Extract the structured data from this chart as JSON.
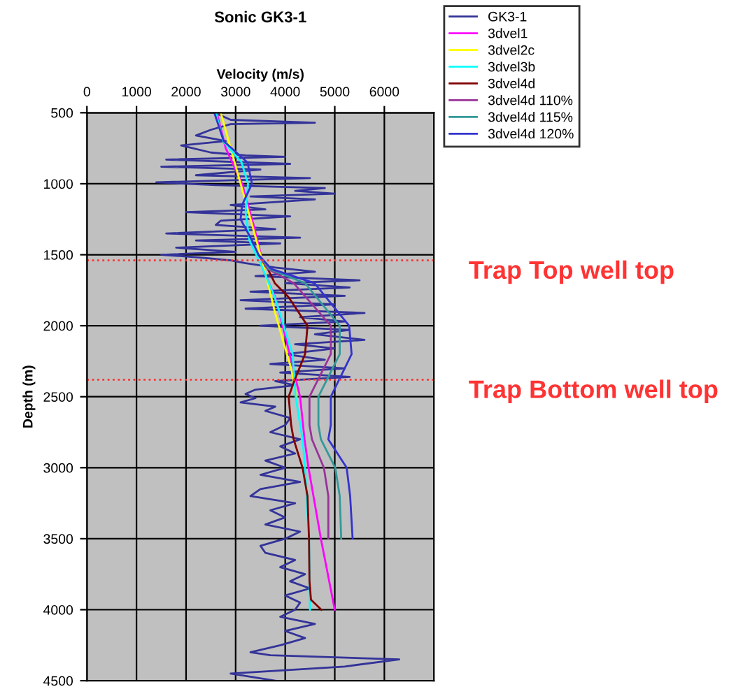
{
  "chart_data": {
    "type": "line",
    "title": "Sonic GK3-1",
    "xlabel": "Velocity (m/s)",
    "ylabel": "Depth (m)",
    "xlim": [
      0,
      7000
    ],
    "xticks": [
      0,
      1000,
      2000,
      3000,
      4000,
      5000,
      6000
    ],
    "ylim": [
      4500,
      500
    ],
    "yticks": [
      500,
      1000,
      1500,
      2000,
      2500,
      3000,
      3500,
      4000,
      4500
    ],
    "grid": true,
    "legend": "top right",
    "series": [
      {
        "name": "GK3-1",
        "color": "#333399",
        "x": [
          2580,
          2900,
          4600,
          2900,
          2500,
          2200,
          2800,
          1900,
          2500,
          3200,
          4000,
          1600,
          4100,
          1500,
          3500,
          2200,
          4500,
          1400,
          2600,
          4800,
          4200,
          5000,
          3300,
          4600,
          2900,
          3600,
          2000,
          4100,
          2700,
          2600,
          3800,
          1600,
          4300,
          2200,
          3900,
          1800,
          3000,
          1500,
          2300,
          2900,
          3200,
          3800,
          4600,
          3400,
          5500,
          4000,
          5300,
          3300,
          5200,
          3100,
          5000,
          3200,
          5600,
          4300,
          5200,
          3500,
          5300,
          4600,
          5600,
          4200,
          5000,
          4000,
          4800,
          3700,
          5200,
          3900,
          5300,
          3800,
          4200,
          3400,
          3200,
          3400,
          3100,
          3800,
          3600,
          4100,
          4000,
          3700,
          4300,
          3900,
          4200,
          3600,
          4000,
          3500,
          4300,
          3500,
          3300,
          4200,
          3700,
          4000,
          3600,
          4300,
          4000,
          3500,
          3600,
          4200,
          3900,
          4400,
          4100,
          4500,
          4000,
          4300,
          4200,
          3900,
          4600,
          4000,
          4400,
          3900,
          3300,
          3700,
          6300,
          5200,
          2900,
          3800
        ],
        "values": [
          500,
          550,
          570,
          580,
          620,
          660,
          700,
          730,
          780,
          800,
          810,
          830,
          860,
          880,
          900,
          940,
          960,
          990,
          1010,
          1030,
          1050,
          1070,
          1090,
          1110,
          1150,
          1180,
          1200,
          1230,
          1260,
          1290,
          1320,
          1350,
          1380,
          1400,
          1420,
          1450,
          1480,
          1500,
          1520,
          1540,
          1560,
          1590,
          1620,
          1650,
          1680,
          1700,
          1730,
          1760,
          1790,
          1820,
          1850,
          1880,
          1910,
          1940,
          1970,
          2000,
          2030,
          2060,
          2100,
          2130,
          2160,
          2200,
          2240,
          2270,
          2300,
          2330,
          2360,
          2390,
          2420,
          2450,
          2480,
          2510,
          2540,
          2570,
          2600,
          2650,
          2700,
          2750,
          2800,
          2850,
          2900,
          2950,
          3000,
          3050,
          3100,
          3150,
          3200,
          3250,
          3300,
          3350,
          3400,
          3450,
          3500,
          3550,
          3600,
          3650,
          3700,
          3750,
          3800,
          3850,
          3900,
          3950,
          4000,
          4050,
          4100,
          4150,
          4200,
          4250,
          4300,
          4320,
          4350,
          4400,
          4450,
          4500
        ]
      },
      {
        "name": "3dvel1",
        "color": "#ff00ff",
        "x": [
          2620,
          2800,
          3130,
          3370,
          3510,
          3550,
          3800,
          3950,
          4300,
          4390,
          4470,
          4720,
          5000
        ],
        "values": [
          500,
          750,
          1000,
          1300,
          1500,
          1600,
          1800,
          2000,
          2500,
          2800,
          3000,
          3500,
          4000
        ]
      },
      {
        "name": "3dvel2c",
        "color": "#ffff00",
        "x": [
          2700,
          2900,
          3100,
          3300,
          3500,
          3650,
          3790,
          3950,
          4120,
          4230
        ],
        "values": [
          500,
          750,
          1000,
          1250,
          1500,
          1700,
          1900,
          2100,
          2300,
          2500
        ]
      },
      {
        "name": "3dvel3b",
        "color": "#00ffff",
        "x": [
          2600,
          2750,
          3120,
          3250,
          3200,
          3280,
          3550,
          3790,
          3970,
          4150,
          4210,
          4350,
          4400,
          4480,
          4500
        ],
        "values": [
          500,
          700,
          850,
          1000,
          1200,
          1400,
          1600,
          1800,
          2000,
          2200,
          2500,
          2800,
          3000,
          3500,
          4000
        ]
      },
      {
        "name": "3dvel4d",
        "color": "#800000",
        "x": [
          3550,
          3650,
          3790,
          4070,
          4450,
          4400,
          4170,
          4070,
          4120,
          4170,
          4350,
          4450,
          4480,
          4490,
          4520,
          4730
        ],
        "values": [
          1550,
          1600,
          1700,
          1800,
          2000,
          2200,
          2400,
          2500,
          2700,
          2800,
          3000,
          3200,
          3500,
          3800,
          3930,
          4000
        ]
      },
      {
        "name": "3dvel4d 110%",
        "color": "#993399",
        "x": [
          3460,
          3650,
          4170,
          4920,
          4920,
          4490,
          4490,
          4540,
          4780,
          4870,
          4870
        ],
        "values": [
          1500,
          1600,
          1700,
          2000,
          2200,
          2500,
          2700,
          2800,
          3000,
          3200,
          3500
        ]
      },
      {
        "name": "3dvel4d 115%",
        "color": "#339999",
        "x": [
          3460,
          3680,
          4400,
          5100,
          5100,
          4670,
          4670,
          4720,
          5010,
          5100,
          5130
        ],
        "values": [
          1500,
          1600,
          1700,
          2000,
          2200,
          2500,
          2700,
          2800,
          3000,
          3200,
          3500
        ]
      },
      {
        "name": "3dvel4d 120%",
        "color": "#3333cc",
        "x": [
          2570,
          2760,
          3240,
          3330,
          3130,
          3100,
          3330,
          3460,
          3720,
          4590,
          5290,
          5340,
          4920,
          4920,
          4870,
          5240,
          5310,
          5360
        ],
        "values": [
          500,
          700,
          850,
          1000,
          1150,
          1250,
          1400,
          1500,
          1600,
          1700,
          2000,
          2200,
          2500,
          2700,
          2800,
          3000,
          3200,
          3500
        ]
      }
    ],
    "ref_lines": [
      {
        "axis": "y",
        "value": 1540,
        "label": "Trap Top well top",
        "color": "#ff3333",
        "line_style": "dotted"
      },
      {
        "axis": "y",
        "value": 2380,
        "label": "Trap Bottom well top",
        "color": "#ff3333",
        "line_style": "dotted"
      }
    ]
  }
}
